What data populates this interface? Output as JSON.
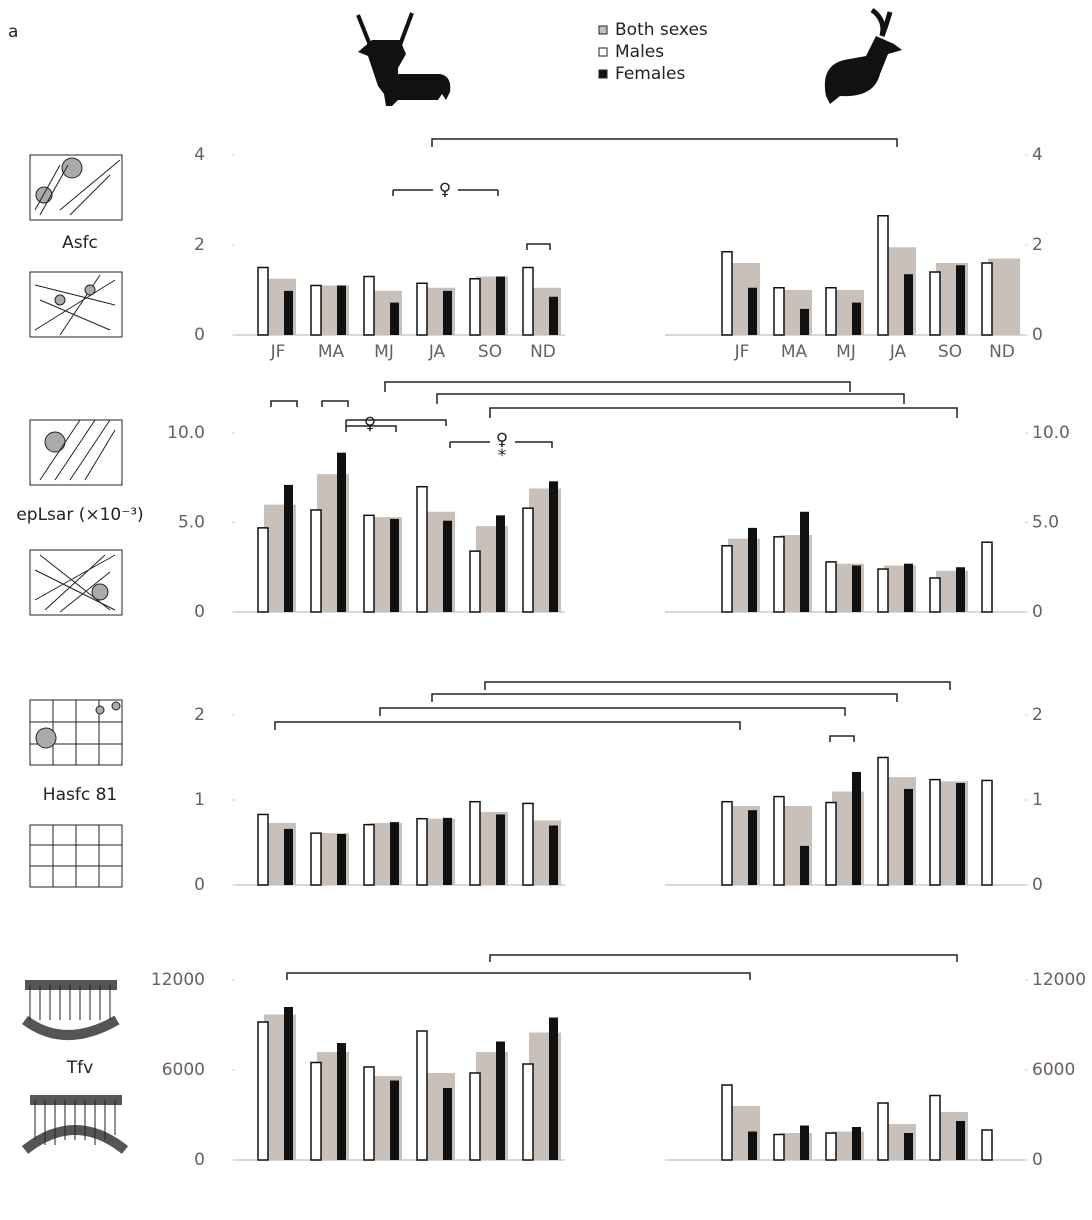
{
  "panel_label": "a",
  "chart_data": [
    {
      "type": "bar",
      "title": "Asfc",
      "categories": [
        "JF",
        "MA",
        "MJ",
        "JA",
        "SO",
        "ND"
      ],
      "ylim": [
        0,
        4
      ],
      "yticks": [
        0,
        2,
        4
      ],
      "annotations": [
        "♀"
      ],
      "series": [
        {
          "name": "Both sexes",
          "color": "#c9c0ba",
          "values": [
            1.25,
            1.1,
            0.98,
            1.05,
            1.3,
            1.05
          ]
        },
        {
          "name": "Males",
          "color": "#ffffff",
          "values": [
            1.5,
            1.1,
            1.3,
            1.15,
            1.25,
            1.5
          ]
        },
        {
          "name": "Females",
          "color": "#111111",
          "values": [
            0.98,
            1.1,
            0.72,
            0.98,
            1.3,
            0.85
          ]
        }
      ]
    },
    {
      "type": "bar",
      "categories": [
        "JF",
        "MA",
        "MJ",
        "JA",
        "SO",
        "ND"
      ],
      "ylim": [
        0,
        4
      ],
      "yticks": [
        0,
        2,
        4
      ],
      "series": [
        {
          "color": "#c9c0ba",
          "values": [
            1.6,
            1.0,
            1.0,
            1.95,
            1.6,
            1.7
          ]
        },
        {
          "color": "#ffffff",
          "values": [
            1.85,
            1.05,
            1.05,
            2.65,
            1.4,
            1.6
          ]
        },
        {
          "color": "#111111",
          "values": [
            1.05,
            0.58,
            0.72,
            1.35,
            1.55,
            null
          ]
        }
      ]
    },
    {
      "type": "bar",
      "title": "epLsar (×10⁻³)",
      "categories": [
        null,
        null,
        null,
        null,
        null,
        null
      ],
      "ylim": [
        0,
        10
      ],
      "yticks": [
        0,
        {
          "value": 5,
          "label": "5.0"
        },
        {
          "value": 10,
          "label": "10.0"
        }
      ],
      "annotations": [
        "♀",
        "♀",
        "*"
      ],
      "series": [
        {
          "color": "#c9c0ba",
          "values": [
            6.0,
            7.7,
            5.3,
            5.6,
            4.8,
            6.9
          ]
        },
        {
          "color": "#ffffff",
          "values": [
            4.7,
            5.7,
            5.4,
            7.0,
            3.4,
            5.8
          ]
        },
        {
          "color": "#111111",
          "values": [
            7.1,
            8.9,
            5.2,
            5.1,
            5.4,
            7.3
          ]
        }
      ]
    },
    {
      "type": "bar",
      "categories": [
        null,
        null,
        null,
        null,
        null,
        null
      ],
      "ylim": [
        0,
        10
      ],
      "yticks": [
        0,
        {
          "value": 5,
          "label": "5.0"
        },
        {
          "value": 10,
          "label": "10.0"
        }
      ],
      "series": [
        {
          "color": "#c9c0ba",
          "values": [
            4.1,
            4.3,
            2.7,
            2.6,
            2.3,
            null
          ]
        },
        {
          "color": "#ffffff",
          "values": [
            3.7,
            4.2,
            2.8,
            2.4,
            1.9,
            3.9
          ]
        },
        {
          "color": "#111111",
          "values": [
            4.7,
            5.6,
            2.6,
            2.7,
            2.5,
            null
          ]
        }
      ]
    },
    {
      "type": "bar",
      "title": "Hasfc 81",
      "categories": [
        null,
        null,
        null,
        null,
        null,
        null
      ],
      "ylim": [
        0,
        2
      ],
      "yticks": [
        0,
        1,
        2
      ],
      "series": [
        {
          "color": "#c9c0ba",
          "values": [
            0.73,
            0.61,
            0.73,
            0.78,
            0.86,
            0.76
          ]
        },
        {
          "color": "#ffffff",
          "values": [
            0.83,
            0.61,
            0.71,
            0.78,
            0.98,
            0.96
          ]
        },
        {
          "color": "#111111",
          "values": [
            0.66,
            0.6,
            0.74,
            0.79,
            0.83,
            0.7
          ]
        }
      ]
    },
    {
      "type": "bar",
      "categories": [
        null,
        null,
        null,
        null,
        null,
        null
      ],
      "ylim": [
        0,
        2
      ],
      "yticks": [
        0,
        1,
        2
      ],
      "series": [
        {
          "color": "#c9c0ba",
          "values": [
            0.93,
            0.93,
            1.1,
            1.27,
            1.22,
            null
          ]
        },
        {
          "color": "#ffffff",
          "values": [
            0.98,
            1.04,
            0.97,
            1.5,
            1.24,
            1.23
          ]
        },
        {
          "color": "#111111",
          "values": [
            0.88,
            0.46,
            1.33,
            1.13,
            1.2,
            null
          ]
        }
      ]
    },
    {
      "type": "bar",
      "title": "Tfv",
      "categories": [
        null,
        null,
        null,
        null,
        null,
        null
      ],
      "ylim": [
        0,
        12000
      ],
      "yticks": [
        0,
        6000,
        12000
      ],
      "series": [
        {
          "color": "#c9c0ba",
          "values": [
            9700,
            7200,
            5600,
            5800,
            7200,
            8500
          ]
        },
        {
          "color": "#ffffff",
          "values": [
            9200,
            6500,
            6200,
            8600,
            5800,
            6400
          ]
        },
        {
          "color": "#111111",
          "values": [
            10200,
            7800,
            5300,
            4800,
            7900,
            9500
          ]
        }
      ]
    },
    {
      "type": "bar",
      "categories": [
        null,
        null,
        null,
        null,
        null,
        null
      ],
      "ylim": [
        0,
        12000
      ],
      "yticks": [
        0,
        6000,
        12000
      ],
      "series": [
        {
          "color": "#c9c0ba",
          "values": [
            3600,
            1800,
            1900,
            2400,
            3200,
            null
          ]
        },
        {
          "color": "#ffffff",
          "values": [
            5000,
            1700,
            1800,
            3800,
            4300,
            2000
          ]
        },
        {
          "color": "#111111",
          "values": [
            1900,
            2300,
            2200,
            1800,
            2600,
            null
          ]
        }
      ]
    }
  ]
}
